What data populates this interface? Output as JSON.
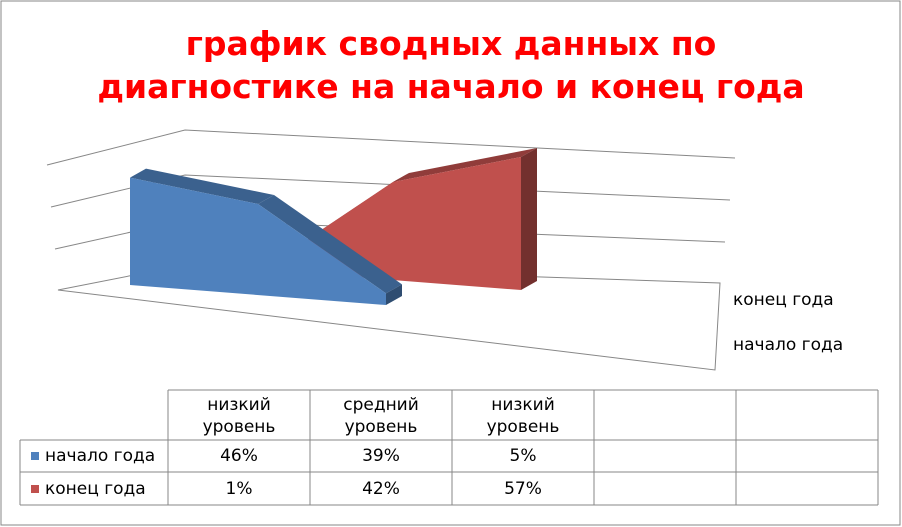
{
  "chart_data": {
    "type": "area3d",
    "title": "график сводных данных по диагностике на начало и конец года",
    "categories": [
      "низкий уровень",
      "средний уровень",
      "низкий уровень",
      null,
      null
    ],
    "series": [
      {
        "name": "начало года",
        "color": "#4f81bd",
        "values": [
          46,
          39,
          5,
          null,
          null
        ],
        "value_labels": [
          "46%",
          "39%",
          "5%",
          null,
          null
        ]
      },
      {
        "name": "конец года",
        "color": "#c0504d",
        "values": [
          1,
          42,
          57,
          null,
          null
        ],
        "value_labels": [
          "1%",
          "42%",
          "57%",
          null,
          null
        ]
      }
    ],
    "ylim": [
      0,
      60
    ]
  }
}
